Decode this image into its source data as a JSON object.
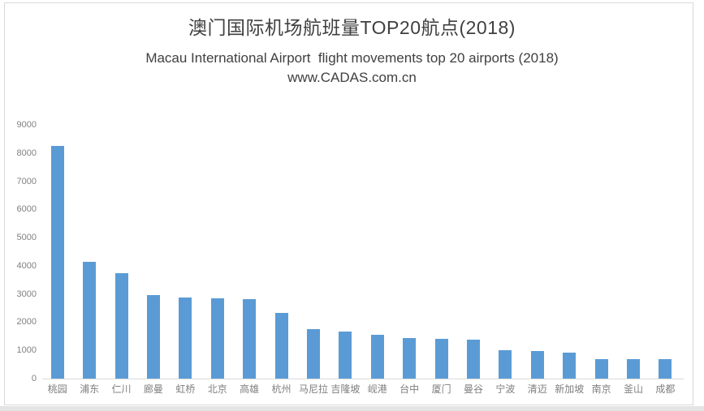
{
  "chart_data": {
    "type": "bar",
    "title": "澳门国际机场航班量TOP20航点(2018)",
    "subtitle": "Macau International Airport  flight movements top 20 airports (2018)",
    "source": "www.CADAS.com.cn",
    "categories": [
      "桃园",
      "浦东",
      "仁川",
      "廊曼",
      "虹桥",
      "北京",
      "高雄",
      "杭州",
      "马尼拉",
      "吉隆坡",
      "岘港",
      "台中",
      "厦门",
      "曼谷",
      "宁波",
      "清迈",
      "新加坡",
      "南京",
      "釜山",
      "成都"
    ],
    "values": [
      8260,
      4150,
      3740,
      2970,
      2890,
      2860,
      2830,
      2330,
      1760,
      1670,
      1550,
      1430,
      1400,
      1390,
      1010,
      980,
      920,
      700,
      690,
      680
    ],
    "xlabel": "",
    "ylabel": "",
    "ylim": [
      0,
      9000
    ],
    "yticks": [
      0,
      1000,
      2000,
      3000,
      4000,
      5000,
      6000,
      7000,
      8000,
      9000
    ],
    "grid": false,
    "legend": false,
    "colors": {
      "bar": "#5B9BD5",
      "axis_line": "#D9D9D9",
      "tick_label": "#808080",
      "title_text": "#404040"
    }
  }
}
